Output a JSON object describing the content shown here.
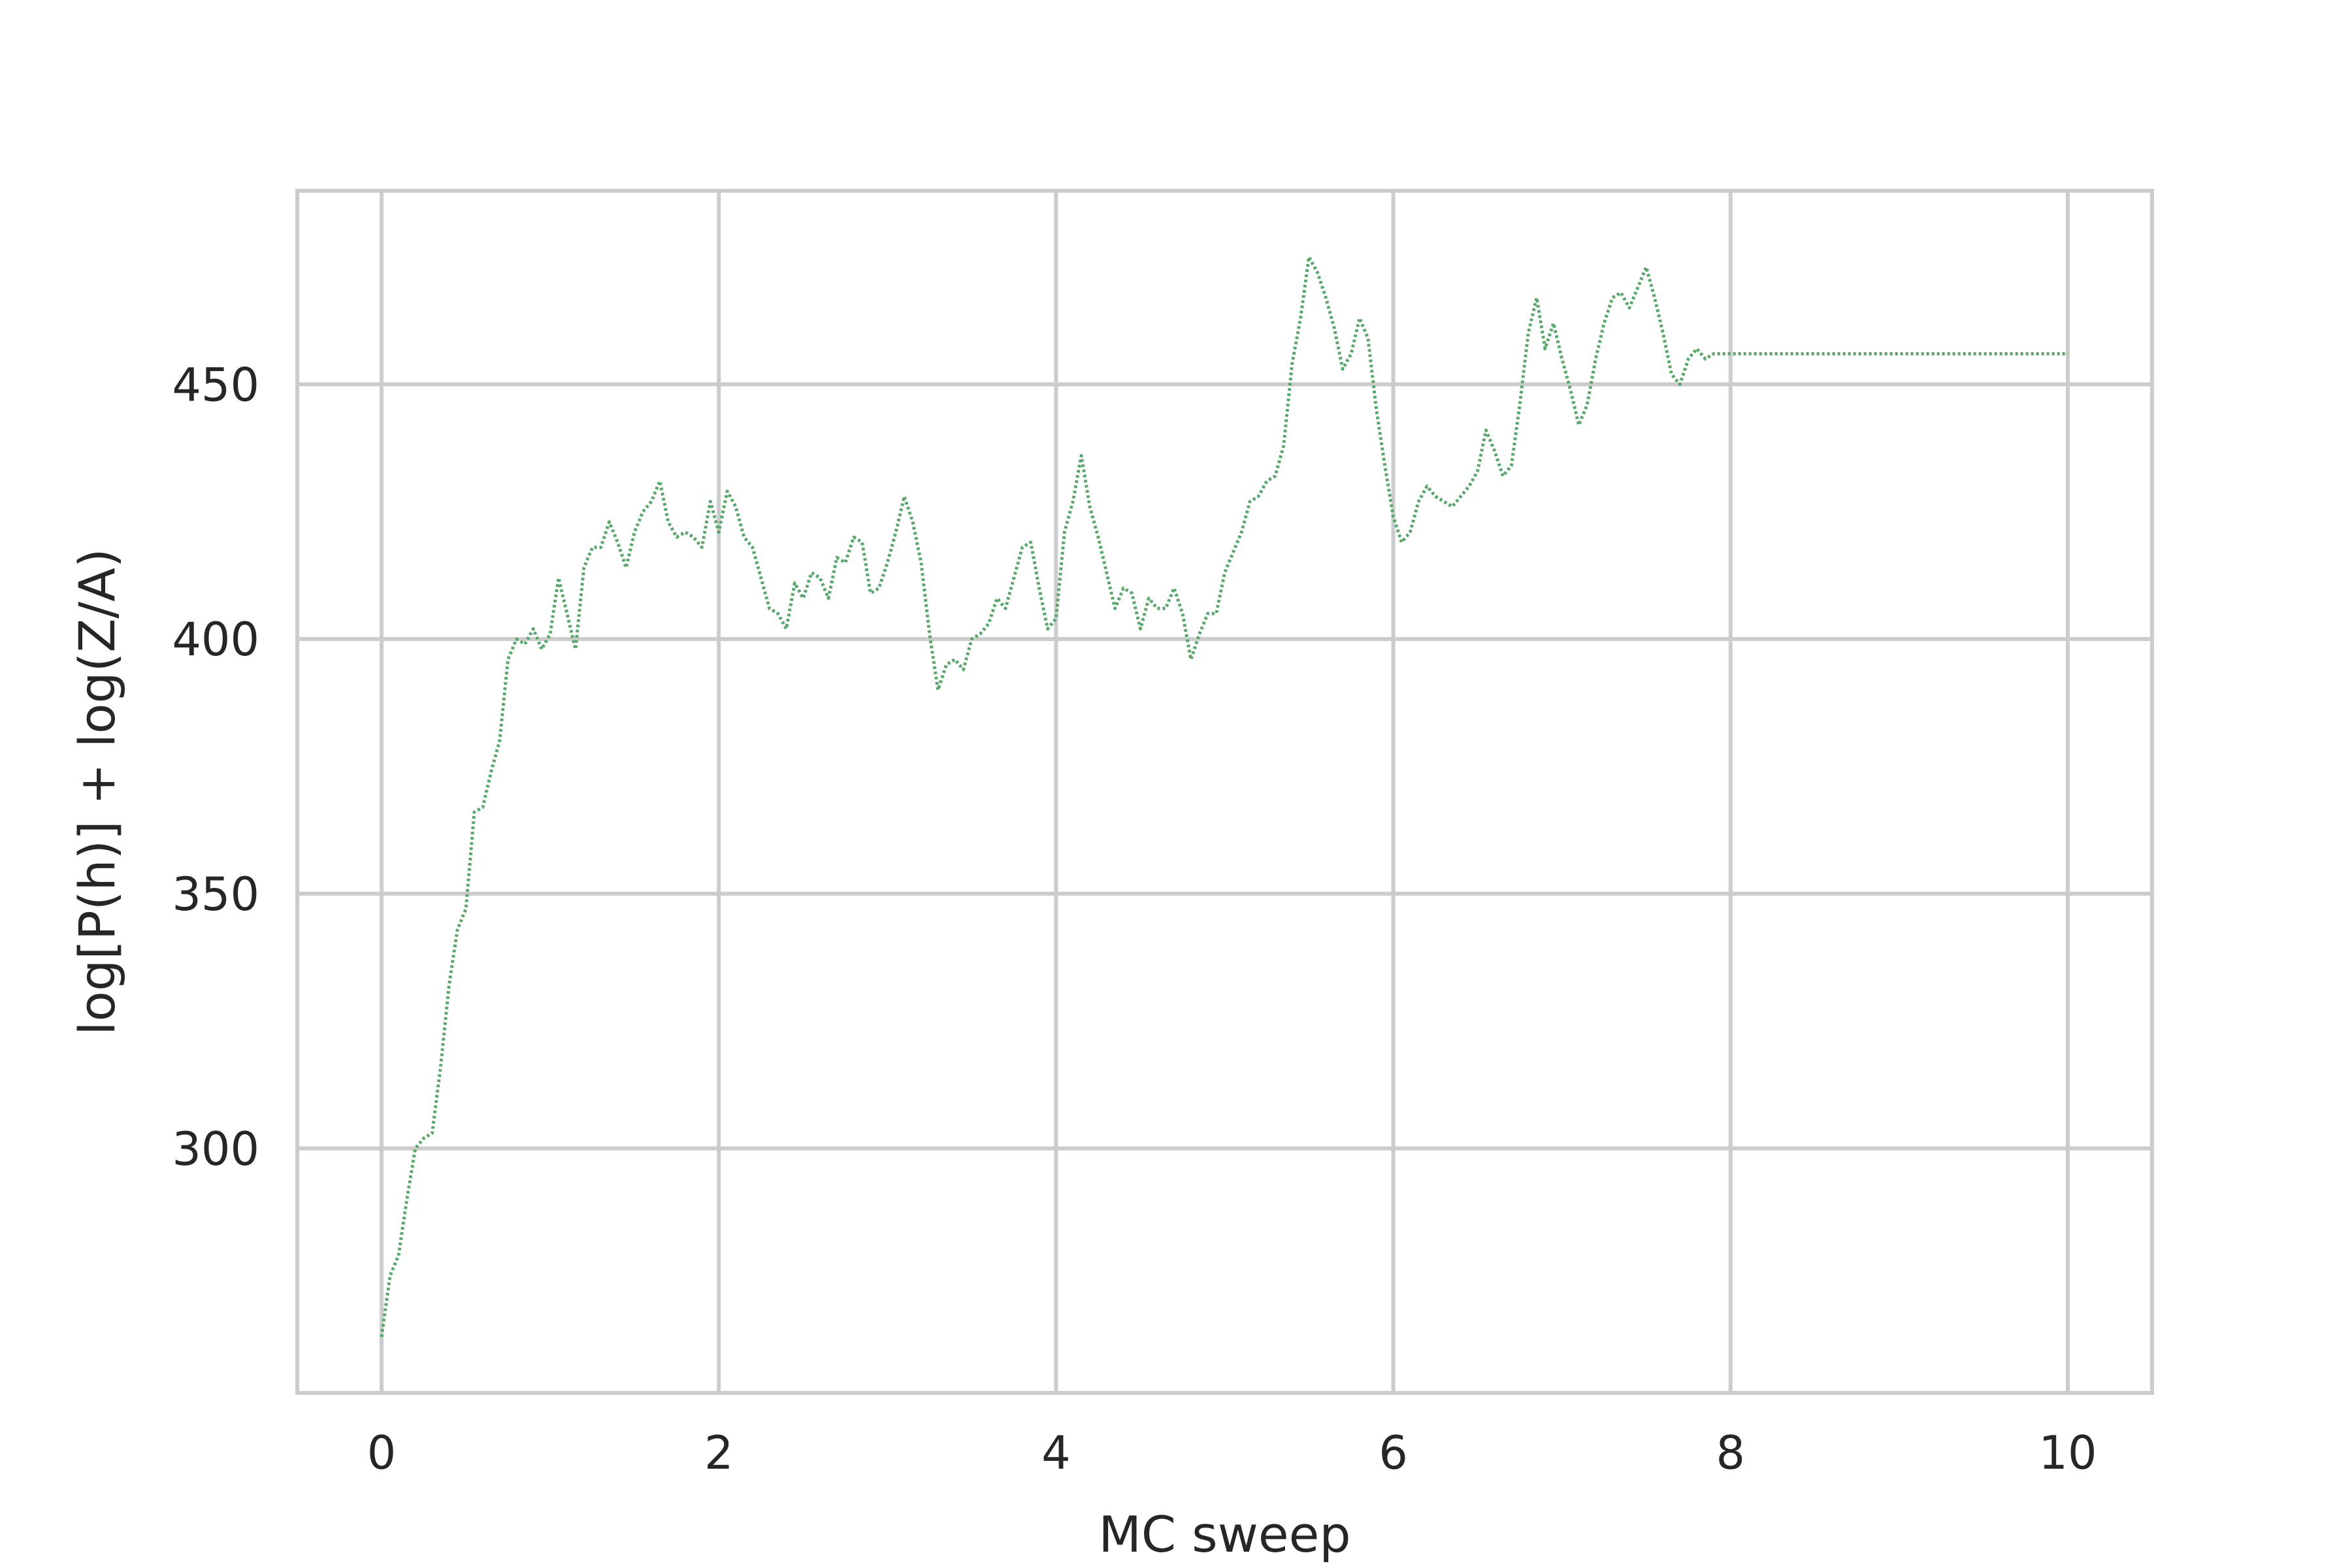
{
  "chart_data": {
    "type": "line",
    "title": "",
    "xlabel": "MC sweep",
    "ylabel": "log[P(h)] + log(Z/A)",
    "xlim": [
      -0.5,
      10.5
    ],
    "ylim": [
      252,
      488
    ],
    "x_ticks": [
      0,
      2,
      4,
      6,
      8,
      10
    ],
    "y_ticks": [
      300,
      350,
      400,
      450
    ],
    "grid": true,
    "legend": "none",
    "series": [
      {
        "color": "#55a868",
        "style": "dotted",
        "x": [
          0.0,
          0.05,
          0.1,
          0.15,
          0.2,
          0.25,
          0.3,
          0.35,
          0.4,
          0.45,
          0.5,
          0.55,
          0.6,
          0.65,
          0.7,
          0.75,
          0.8,
          0.85,
          0.9,
          0.95,
          1.0,
          1.05,
          1.1,
          1.15,
          1.2,
          1.25,
          1.3,
          1.35,
          1.4,
          1.45,
          1.5,
          1.55,
          1.6,
          1.65,
          1.7,
          1.75,
          1.8,
          1.85,
          1.9,
          1.95,
          2.0,
          2.05,
          2.1,
          2.15,
          2.2,
          2.25,
          2.3,
          2.35,
          2.4,
          2.45,
          2.5,
          2.55,
          2.6,
          2.65,
          2.7,
          2.75,
          2.8,
          2.85,
          2.9,
          2.95,
          3.0,
          3.05,
          3.1,
          3.15,
          3.2,
          3.25,
          3.3,
          3.35,
          3.4,
          3.45,
          3.5,
          3.55,
          3.6,
          3.65,
          3.7,
          3.75,
          3.8,
          3.85,
          3.9,
          3.95,
          4.0,
          4.05,
          4.1,
          4.15,
          4.2,
          4.25,
          4.3,
          4.35,
          4.4,
          4.45,
          4.5,
          4.55,
          4.6,
          4.65,
          4.7,
          4.75,
          4.8,
          4.85,
          4.9,
          4.95,
          5.0,
          5.05,
          5.1,
          5.15,
          5.2,
          5.25,
          5.3,
          5.35,
          5.4,
          5.45,
          5.5,
          5.55,
          5.6,
          5.65,
          5.7,
          5.75,
          5.8,
          5.85,
          5.9,
          5.95,
          6.0,
          6.05,
          6.1,
          6.15,
          6.2,
          6.25,
          6.3,
          6.35,
          6.4,
          6.45,
          6.5,
          6.55,
          6.6,
          6.65,
          6.7,
          6.75,
          6.8,
          6.85,
          6.9,
          6.95,
          7.0,
          7.05,
          7.1,
          7.15,
          7.2,
          7.25,
          7.3,
          7.35,
          7.4,
          7.45,
          7.5,
          7.55,
          7.6,
          7.65,
          7.7,
          7.75,
          7.8,
          7.85,
          7.9,
          7.95,
          8.0,
          8.05,
          8.1,
          8.15,
          8.2,
          8.25,
          8.3,
          8.35,
          8.4,
          8.45,
          8.5,
          8.55,
          8.6,
          8.65,
          8.7,
          8.75,
          8.8,
          8.85,
          8.9,
          8.95,
          9.0,
          9.05,
          9.1,
          9.15,
          9.2,
          9.25,
          9.3,
          9.35,
          9.4,
          9.45,
          9.5,
          9.55,
          9.6,
          9.65,
          9.7,
          9.75,
          9.8,
          9.85,
          9.9,
          9.95,
          10.0
        ],
        "y": [
          263,
          275,
          279,
          290,
          300,
          302,
          303,
          316,
          332,
          343,
          347,
          366,
          367,
          374,
          380,
          396,
          400,
          399,
          402,
          398,
          401,
          412,
          405,
          398,
          414,
          418,
          418,
          423,
          419,
          414,
          421,
          425,
          427,
          431,
          423,
          420,
          421,
          420,
          418,
          427,
          421,
          429,
          426,
          420,
          418,
          412,
          406,
          405,
          402,
          411,
          408,
          413,
          412,
          408,
          416,
          415,
          420,
          419,
          409,
          410,
          415,
          421,
          428,
          423,
          415,
          401,
          390,
          395,
          396,
          394,
          400,
          401,
          403,
          408,
          406,
          412,
          418,
          419,
          410,
          402,
          404,
          421,
          427,
          436,
          426,
          420,
          413,
          406,
          410,
          409,
          402,
          408,
          406,
          406,
          410,
          405,
          396,
          401,
          405,
          405,
          413,
          417,
          421,
          427,
          428,
          431,
          432,
          438,
          454,
          463,
          475,
          472,
          467,
          461,
          453,
          456,
          463,
          459,
          445,
          434,
          424,
          419,
          421,
          427,
          430,
          428,
          427,
          426,
          428,
          430,
          433,
          441,
          437,
          432,
          434,
          446,
          460,
          467,
          457,
          462,
          455,
          449,
          442,
          446,
          455,
          462,
          467,
          468,
          465,
          469,
          473,
          467,
          460,
          452,
          450,
          455,
          457,
          455,
          456,
          456,
          456,
          456,
          456,
          456,
          456,
          456,
          456,
          456,
          456,
          456,
          456,
          456,
          456,
          456,
          456,
          456,
          456,
          456,
          456,
          456,
          456,
          456,
          456,
          456,
          456,
          456,
          456,
          456,
          456,
          456,
          456,
          456,
          456,
          456,
          456,
          456,
          456,
          456,
          456,
          456,
          456
        ]
      }
    ]
  }
}
